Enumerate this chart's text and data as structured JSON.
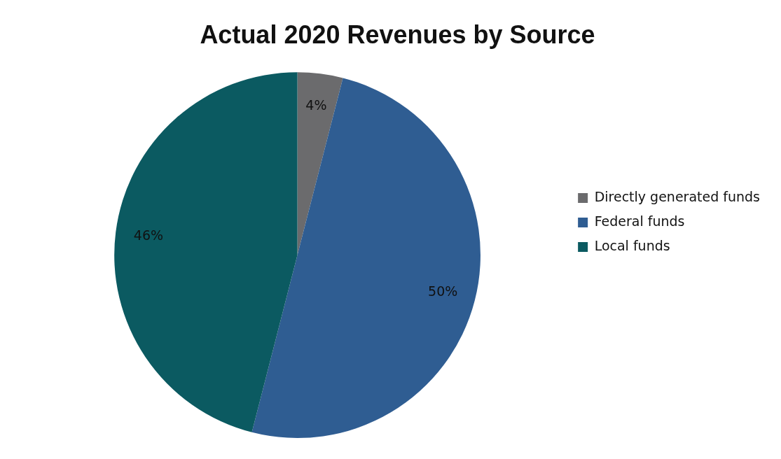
{
  "chart_data": {
    "type": "pie",
    "title": "Actual 2020 Revenues by Source",
    "categories": [
      "Directly generated funds",
      "Federal funds",
      "Local funds"
    ],
    "values": [
      4,
      50,
      46
    ],
    "colors": [
      "#6b6b6d",
      "#2f5d92",
      "#0b5a61"
    ],
    "value_labels": [
      "4%",
      "50%",
      "46%"
    ],
    "legend": "right"
  }
}
